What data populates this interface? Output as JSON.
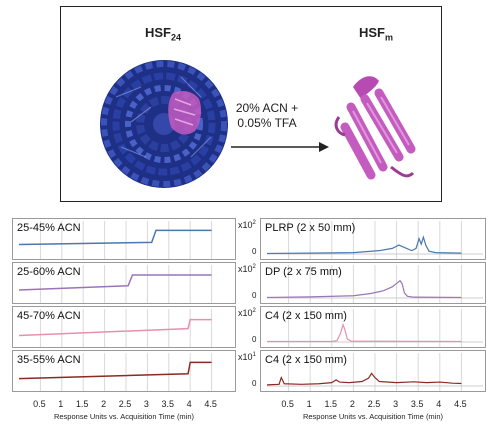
{
  "schematic": {
    "left_label_main": "HSF",
    "left_label_sub": "24",
    "right_label_main": "HSF",
    "right_label_sub": "m",
    "condition_line1": "20% ACN +",
    "condition_line2": "0.05% TFA",
    "colors": {
      "protein_cage": "#2b3f9e",
      "protein_monomer": "#c45bbf",
      "arrow": "#222222"
    }
  },
  "left_panels": [
    {
      "title": "25-45% ACN",
      "color": "#4a78b0",
      "steps": [
        [
          0.0,
          0.35
        ],
        [
          3.1,
          0.42
        ],
        [
          3.2,
          0.82
        ],
        [
          4.5,
          0.82
        ]
      ]
    },
    {
      "title": "25-60% ACN",
      "color": "#9b74b8",
      "steps": [
        [
          0.0,
          0.3
        ],
        [
          2.55,
          0.44
        ],
        [
          2.65,
          0.8
        ],
        [
          4.5,
          0.8
        ]
      ]
    },
    {
      "title": "45-70% ACN",
      "color": "#e78fb0",
      "steps": [
        [
          0.0,
          0.25
        ],
        [
          3.95,
          0.48
        ],
        [
          4.0,
          0.78
        ],
        [
          4.5,
          0.78
        ]
      ]
    },
    {
      "title": "35-55% ACN",
      "color": "#8b2a22",
      "steps": [
        [
          0.0,
          0.28
        ],
        [
          3.95,
          0.44
        ],
        [
          4.0,
          0.82
        ],
        [
          4.5,
          0.82
        ]
      ]
    }
  ],
  "right_panels": [
    {
      "title": "PLRP (2 x 50 mm)",
      "multiplier_base": "x10",
      "multiplier_exp": "2",
      "zero": "0",
      "color": "#4a78b0",
      "trace": [
        [
          0.0,
          0.02
        ],
        [
          1.0,
          0.03
        ],
        [
          2.0,
          0.05
        ],
        [
          2.6,
          0.12
        ],
        [
          2.9,
          0.2
        ],
        [
          3.05,
          0.32
        ],
        [
          3.2,
          0.22
        ],
        [
          3.35,
          0.12
        ],
        [
          3.45,
          0.2
        ],
        [
          3.52,
          0.55
        ],
        [
          3.57,
          0.35
        ],
        [
          3.62,
          0.6
        ],
        [
          3.68,
          0.3
        ],
        [
          3.75,
          0.1
        ],
        [
          3.9,
          0.05
        ],
        [
          4.5,
          0.03
        ]
      ]
    },
    {
      "title": "DP (2 x 75 mm)",
      "multiplier_base": "x10",
      "multiplier_exp": "2",
      "zero": "0",
      "color": "#9b74b8",
      "trace": [
        [
          0.0,
          0.02
        ],
        [
          1.0,
          0.04
        ],
        [
          2.0,
          0.08
        ],
        [
          2.4,
          0.16
        ],
        [
          2.7,
          0.26
        ],
        [
          2.9,
          0.4
        ],
        [
          3.0,
          0.52
        ],
        [
          3.08,
          0.62
        ],
        [
          3.13,
          0.5
        ],
        [
          3.18,
          0.18
        ],
        [
          3.25,
          0.06
        ],
        [
          3.4,
          0.03
        ],
        [
          4.5,
          0.02
        ]
      ]
    },
    {
      "title": "C4 (2 x 150 mm)",
      "multiplier_base": "x10",
      "multiplier_exp": "2",
      "zero": "0",
      "color": "#e78fb0",
      "trace": [
        [
          0.0,
          0.02
        ],
        [
          1.5,
          0.02
        ],
        [
          1.62,
          0.05
        ],
        [
          1.7,
          0.3
        ],
        [
          1.76,
          0.62
        ],
        [
          1.8,
          0.45
        ],
        [
          1.86,
          0.1
        ],
        [
          1.95,
          0.03
        ],
        [
          4.5,
          0.02
        ]
      ]
    },
    {
      "title": "C4 (2 x 150 mm)",
      "multiplier_base": "x10",
      "multiplier_exp": "1",
      "zero": "0",
      "color": "#8b2a22",
      "trace": [
        [
          0.0,
          0.04
        ],
        [
          0.28,
          0.06
        ],
        [
          0.33,
          0.3
        ],
        [
          0.4,
          0.08
        ],
        [
          0.8,
          0.06
        ],
        [
          1.2,
          0.08
        ],
        [
          1.5,
          0.12
        ],
        [
          1.6,
          0.22
        ],
        [
          1.68,
          0.14
        ],
        [
          1.9,
          0.12
        ],
        [
          2.2,
          0.16
        ],
        [
          2.35,
          0.28
        ],
        [
          2.42,
          0.45
        ],
        [
          2.5,
          0.3
        ],
        [
          2.6,
          0.16
        ],
        [
          3.0,
          0.12
        ],
        [
          3.4,
          0.15
        ],
        [
          3.7,
          0.12
        ],
        [
          4.0,
          0.14
        ],
        [
          4.3,
          0.1
        ],
        [
          4.5,
          0.09
        ]
      ]
    }
  ],
  "axis": {
    "ticks": [
      "0.5",
      "1",
      "1.5",
      "2",
      "2.5",
      "3",
      "3.5",
      "4",
      "4.5"
    ],
    "label": "Response Units vs. Acquisition Time (min)"
  }
}
